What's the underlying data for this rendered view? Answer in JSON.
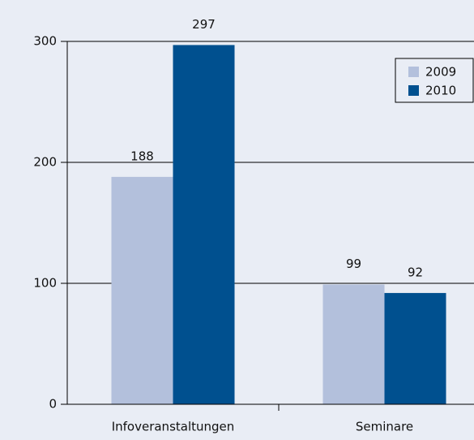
{
  "chart_data": {
    "type": "bar",
    "categories": [
      "Infoveranstaltungen",
      "Seminare"
    ],
    "series": [
      {
        "name": "2009",
        "color": "#b3c0dc",
        "values": [
          188,
          99
        ]
      },
      {
        "name": "2010",
        "color": "#00508f",
        "values": [
          297,
          92
        ]
      }
    ],
    "ylim": [
      0,
      300
    ],
    "yticks": [
      0,
      100,
      200,
      300
    ],
    "grid": true,
    "legend": "upper right"
  }
}
